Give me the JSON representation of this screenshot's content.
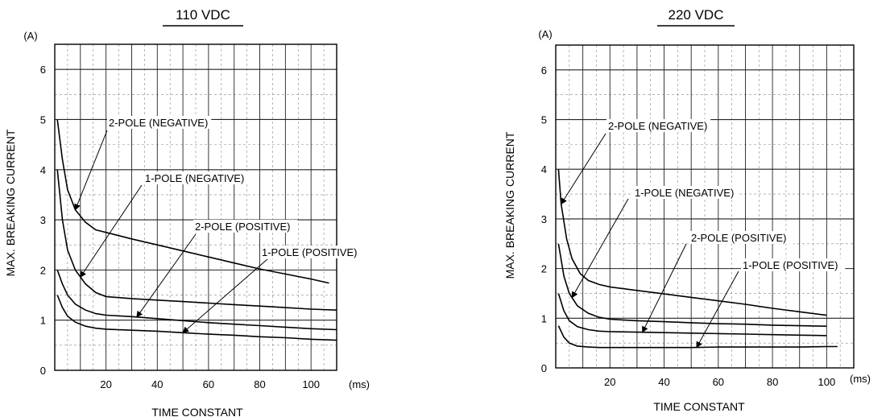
{
  "chart_data": [
    {
      "type": "line",
      "title": "110 VDC",
      "ylabel": "MAX. BREAKING CURRENT",
      "xlabel": "TIME CONSTANT",
      "y_unit": "(A)",
      "x_unit": "(ms)",
      "xlim": [
        0,
        110
      ],
      "ylim": [
        0,
        6.5
      ],
      "xticks": [
        "20",
        "40",
        "60",
        "80",
        "100"
      ],
      "yticks": [
        "0",
        "1",
        "2",
        "3",
        "4",
        "5",
        "6"
      ],
      "grid": true,
      "series": [
        {
          "name": "2-POLE (NEGATIVE)",
          "x": [
            1,
            3,
            5,
            8,
            12,
            16,
            20,
            30,
            40,
            50,
            60,
            70,
            80,
            90,
            100,
            107
          ],
          "y": [
            5.0,
            4.2,
            3.6,
            3.2,
            2.95,
            2.8,
            2.75,
            2.62,
            2.5,
            2.38,
            2.26,
            2.14,
            2.02,
            1.92,
            1.82,
            1.74
          ]
        },
        {
          "name": "1-POLE (NEGATIVE)",
          "x": [
            1,
            3,
            5,
            8,
            12,
            16,
            20,
            30,
            40,
            50,
            60,
            70,
            80,
            90,
            100,
            110
          ],
          "y": [
            4.0,
            3.0,
            2.4,
            2.0,
            1.72,
            1.55,
            1.47,
            1.43,
            1.4,
            1.37,
            1.34,
            1.31,
            1.28,
            1.25,
            1.22,
            1.2
          ]
        },
        {
          "name": "2-POLE (POSITIVE)",
          "x": [
            1,
            3,
            5,
            8,
            12,
            16,
            20,
            30,
            40,
            50,
            60,
            70,
            80,
            90,
            100,
            110
          ],
          "y": [
            2.0,
            1.72,
            1.5,
            1.32,
            1.2,
            1.13,
            1.1,
            1.07,
            1.03,
            0.99,
            0.95,
            0.92,
            0.89,
            0.86,
            0.83,
            0.81
          ]
        },
        {
          "name": "1-POLE (POSITIVE)",
          "x": [
            1,
            3,
            5,
            8,
            12,
            16,
            20,
            30,
            40,
            50,
            60,
            70,
            80,
            90,
            100,
            110
          ],
          "y": [
            1.5,
            1.25,
            1.08,
            0.96,
            0.88,
            0.84,
            0.82,
            0.8,
            0.78,
            0.75,
            0.72,
            0.7,
            0.67,
            0.65,
            0.62,
            0.6
          ]
        }
      ],
      "annotations": [
        {
          "text": "2-POLE (NEGATIVE)",
          "series": 0
        },
        {
          "text": "1-POLE (NEGATIVE)",
          "series": 1
        },
        {
          "text": "2-POLE (POSITIVE)",
          "series": 2
        },
        {
          "text": "1-POLE (POSITIVE)",
          "series": 3
        }
      ]
    },
    {
      "type": "line",
      "title": "220 VDC",
      "ylabel": "MAX. BREAKING CURRENT",
      "xlabel": "TIME CONSTANT",
      "y_unit": "(A)",
      "x_unit": "(ms)",
      "xlim": [
        0,
        110
      ],
      "ylim": [
        0,
        6.5
      ],
      "xticks": [
        "20",
        "40",
        "60",
        "80",
        "100"
      ],
      "yticks": [
        "0",
        "1",
        "2",
        "3",
        "4",
        "5",
        "6"
      ],
      "grid": true,
      "series": [
        {
          "name": "2-POLE (NEGATIVE)",
          "x": [
            1,
            2,
            4,
            6,
            9,
            12,
            16,
            20,
            30,
            40,
            50,
            60,
            70,
            80,
            90,
            100
          ],
          "y": [
            4.0,
            3.3,
            2.6,
            2.2,
            1.9,
            1.76,
            1.68,
            1.63,
            1.56,
            1.49,
            1.42,
            1.35,
            1.28,
            1.2,
            1.13,
            1.06
          ]
        },
        {
          "name": "1-POLE (NEGATIVE)",
          "x": [
            1,
            3,
            5,
            8,
            12,
            16,
            20,
            30,
            40,
            50,
            60,
            70,
            80,
            90,
            100
          ],
          "y": [
            2.5,
            1.85,
            1.5,
            1.25,
            1.1,
            1.02,
            0.98,
            0.95,
            0.93,
            0.91,
            0.89,
            0.88,
            0.86,
            0.85,
            0.84
          ]
        },
        {
          "name": "2-POLE (POSITIVE)",
          "x": [
            1,
            3,
            5,
            8,
            12,
            16,
            20,
            30,
            40,
            50,
            60,
            70,
            80,
            90,
            100
          ],
          "y": [
            1.5,
            1.15,
            0.95,
            0.83,
            0.77,
            0.74,
            0.73,
            0.72,
            0.71,
            0.7,
            0.69,
            0.68,
            0.67,
            0.66,
            0.65
          ]
        },
        {
          "name": "1-POLE (POSITIVE)",
          "x": [
            1,
            3,
            5,
            8,
            12,
            16,
            20,
            30,
            40,
            50,
            60,
            70,
            80,
            90,
            100,
            104
          ],
          "y": [
            0.85,
            0.62,
            0.5,
            0.44,
            0.42,
            0.41,
            0.41,
            0.41,
            0.41,
            0.41,
            0.42,
            0.42,
            0.42,
            0.42,
            0.43,
            0.43
          ]
        }
      ],
      "annotations": [
        {
          "text": "2-POLE (NEGATIVE)",
          "series": 0
        },
        {
          "text": "1-POLE (NEGATIVE)",
          "series": 1
        },
        {
          "text": "2-POLE (POSITIVE)",
          "series": 2
        },
        {
          "text": "1-POLE (POSITIVE)",
          "series": 3
        }
      ]
    }
  ]
}
